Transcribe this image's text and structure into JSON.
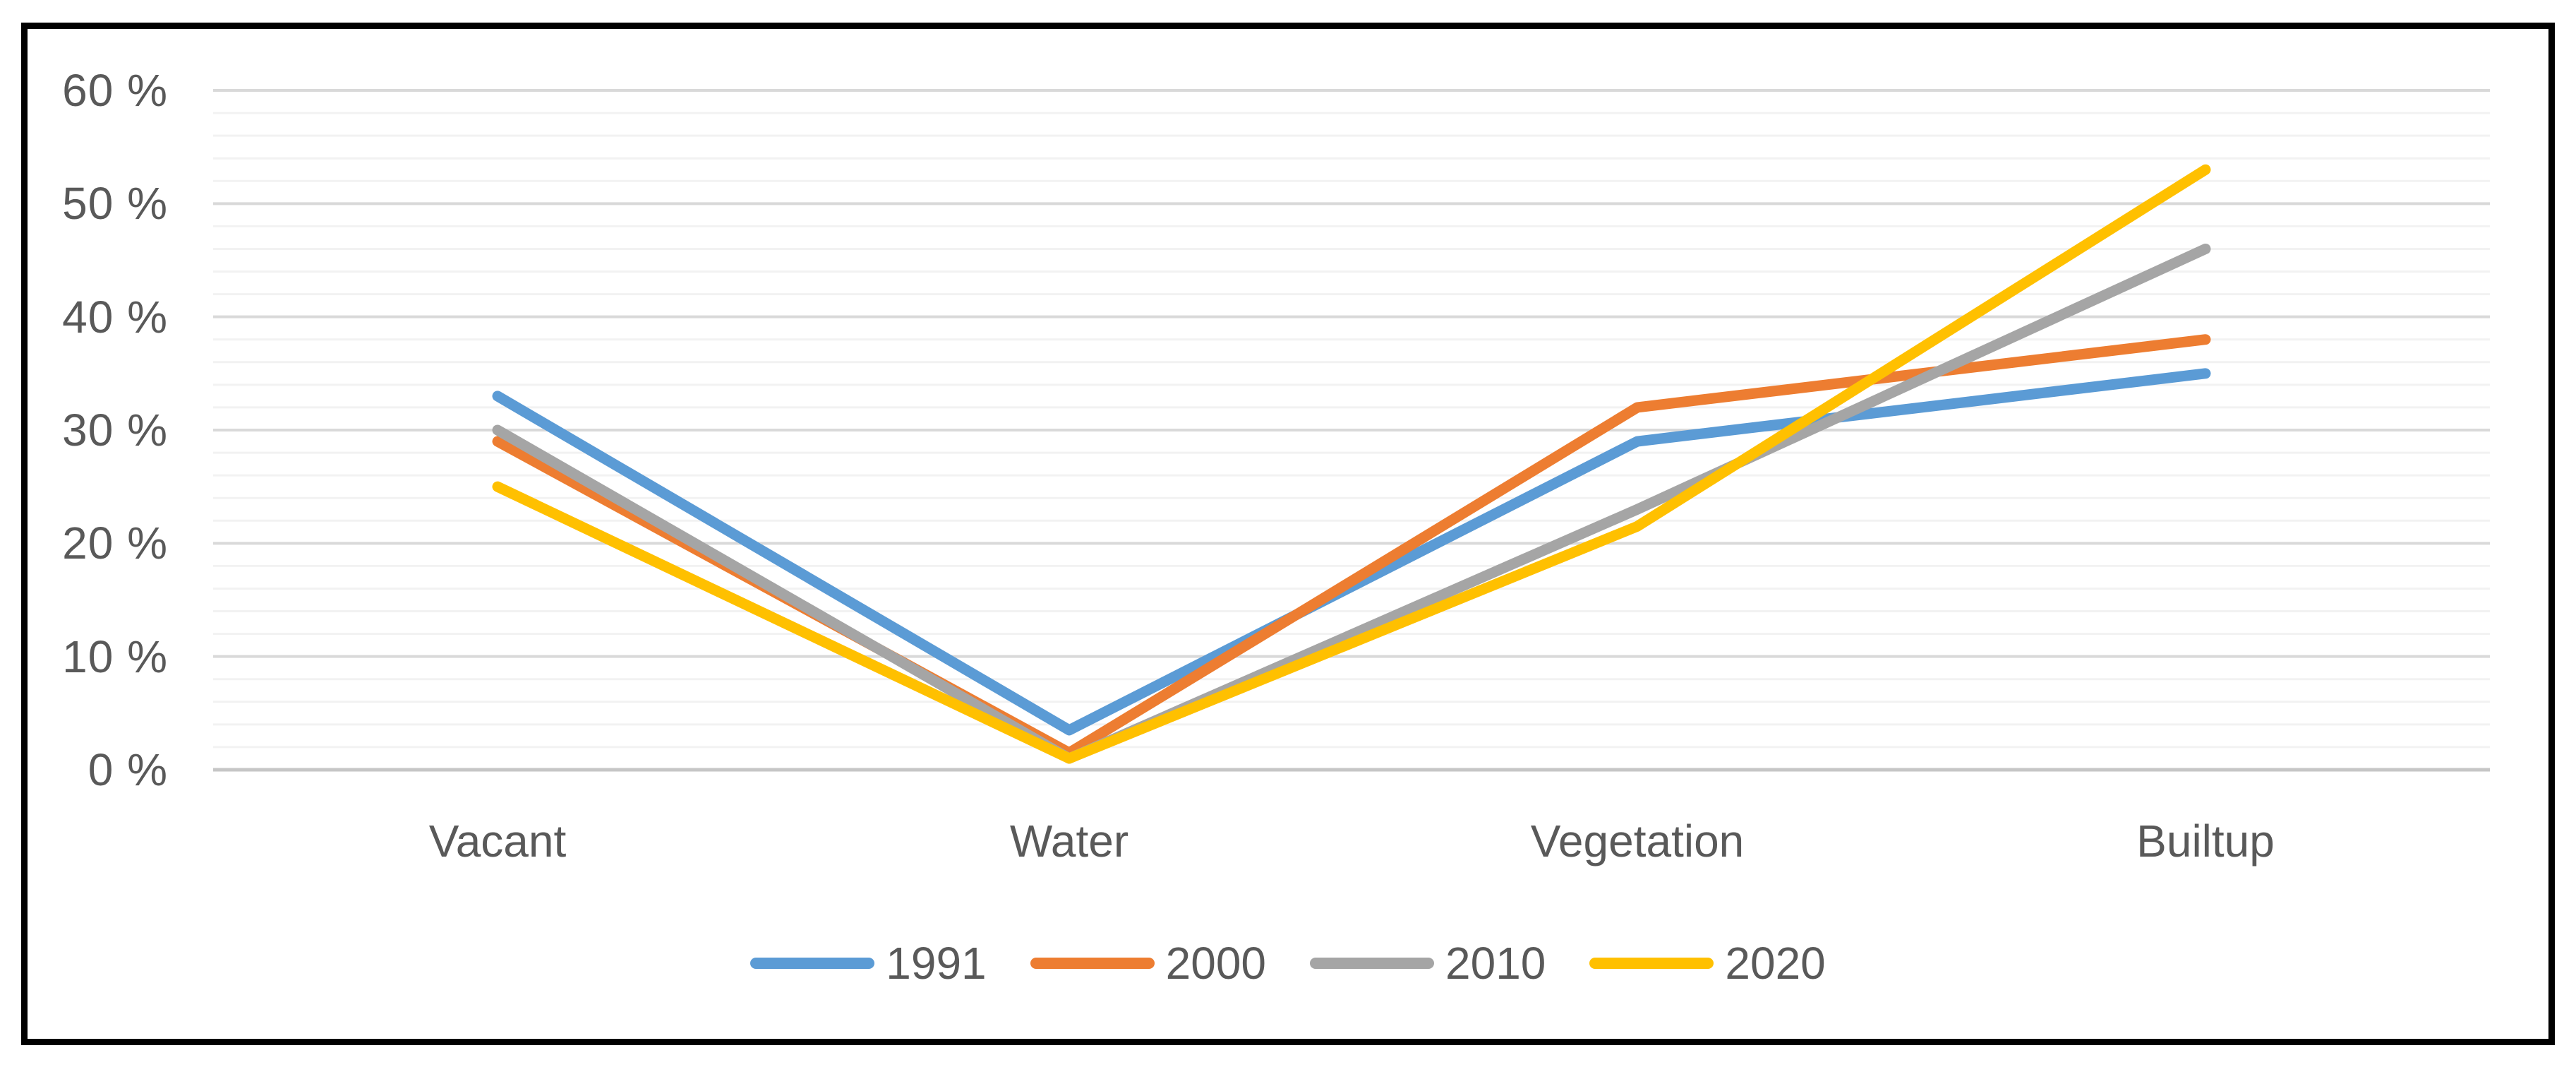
{
  "figure": {
    "border_color": "#000000",
    "background_color": "#ffffff",
    "text_color": "#595959",
    "major_gridline_color": "#d9d9d9",
    "minor_gridline_color": "#f2f2f2",
    "axis_line_color": "#c6c6c6"
  },
  "chart": {
    "y_axis": {
      "ticks": [
        "60 %",
        "50 %",
        "40 %",
        "30 %",
        "20 %",
        "10 %",
        "0 %"
      ],
      "tick_values": [
        60,
        50,
        40,
        30,
        20,
        10,
        0
      ],
      "min": 0,
      "max": 60,
      "major_unit": 10,
      "minor_unit": 2
    }
  },
  "chart_data": {
    "type": "line",
    "title": "",
    "xlabel": "",
    "ylabel": "",
    "ylim": [
      0,
      60
    ],
    "grid": "on",
    "legend_position": "bottom",
    "categories": [
      "Vacant",
      "Water",
      "Vegetation",
      "Builtup"
    ],
    "series": [
      {
        "name": "1991",
        "color": "#5B9BD5",
        "values": [
          33,
          3.5,
          29,
          35
        ]
      },
      {
        "name": "2000",
        "color": "#ED7D31",
        "values": [
          29,
          1.5,
          32,
          38
        ]
      },
      {
        "name": "2010",
        "color": "#A5A5A5",
        "values": [
          30,
          1,
          23,
          46
        ]
      },
      {
        "name": "2020",
        "color": "#FFC000",
        "values": [
          25,
          1,
          21.5,
          53
        ]
      }
    ]
  }
}
